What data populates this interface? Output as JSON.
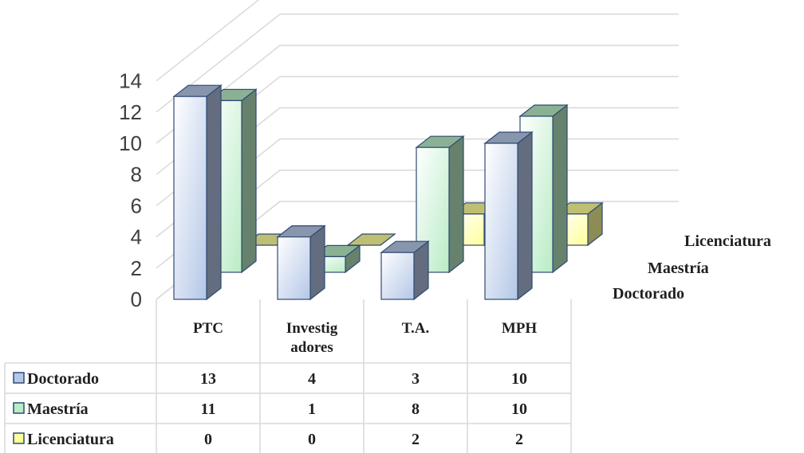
{
  "chart_data": {
    "type": "bar",
    "variant": "3d-clustered-depth",
    "categories": [
      "PTC",
      "Investig adores",
      "T.A.",
      "MPH"
    ],
    "category_label_lines": [
      [
        "PTC"
      ],
      [
        "Investig",
        "adores"
      ],
      [
        "T.A."
      ],
      [
        "MPH"
      ]
    ],
    "series": [
      {
        "name": "Doctorado",
        "values": [
          13,
          4,
          3,
          10
        ],
        "color": "#b4c7e7",
        "edge": "#2f4a73"
      },
      {
        "name": "Maestría",
        "values": [
          11,
          1,
          8,
          10
        ],
        "color": "#b9ecc6",
        "edge": "#2f4a73"
      },
      {
        "name": "Licenciatura",
        "values": [
          0,
          0,
          2,
          2
        ],
        "color": "#ffff99",
        "edge": "#2f4a73"
      }
    ],
    "ylim": [
      0,
      14
    ],
    "yticks": [
      0,
      2,
      4,
      6,
      8,
      10,
      12,
      14
    ],
    "grid": true,
    "data_table": true,
    "title": "",
    "xlabel": "",
    "ylabel": ""
  }
}
